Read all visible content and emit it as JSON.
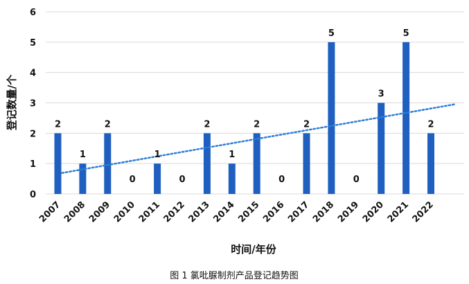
{
  "chart_data": {
    "type": "bar",
    "categories": [
      "2007",
      "2008",
      "2009",
      "2010",
      "2011",
      "2012",
      "2013",
      "2014",
      "2015",
      "2016",
      "2017",
      "2018",
      "2019",
      "2020",
      "2021",
      "2022"
    ],
    "values": [
      2,
      1,
      2,
      0,
      1,
      0,
      2,
      1,
      2,
      0,
      2,
      5,
      0,
      3,
      5,
      2
    ],
    "xlabel": "时间/年份",
    "ylabel": "登记数量/个",
    "ylim": [
      0,
      6
    ],
    "yticks": [
      0,
      1,
      2,
      3,
      4,
      5,
      6
    ],
    "grid": true,
    "data_labels": true,
    "trendline": {
      "type": "linear",
      "style": "dotted"
    },
    "caption": "图 1  氯吡脲制剂产品登记趋势图",
    "colors": {
      "bar": "#1f5fbf",
      "trend": "#2e7dd6",
      "grid": "#d9d9d9"
    }
  }
}
